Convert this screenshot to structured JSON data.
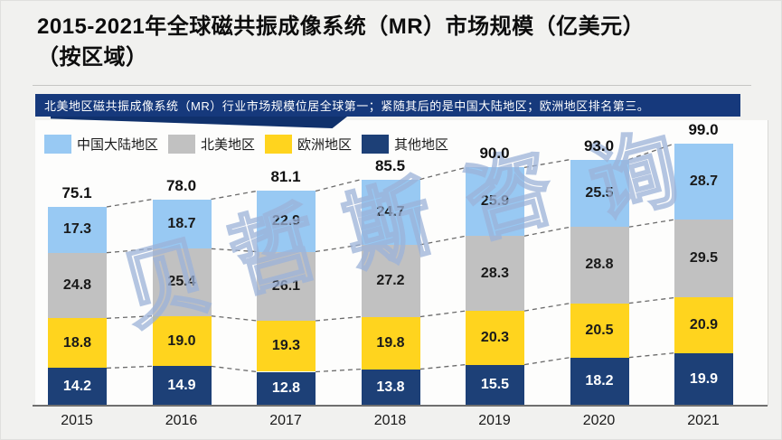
{
  "page": {
    "title_line1": "2015-2021年全球磁共振成像系统（MR）市场规模（亿美元）",
    "title_line2": "（按区域）",
    "banner_text": "北美地区磁共振成像系统（MR）行业市场规模位居全球第一；紧随其后的是中国大陆地区；欧洲地区排名第三。",
    "watermark_text": "贝哲斯咨询"
  },
  "colors": {
    "page_bg": "#f1f1ef",
    "banner_bg": "#16397c",
    "axis_line": "#6f6f6f",
    "dashed_connector": "#6b6b6b",
    "watermark": "#9bb1d8"
  },
  "chart_data": {
    "type": "bar",
    "stacked": true,
    "title": "2015-2021年全球磁共振成像系统（MR）市场规模（亿美元）（按区域）",
    "unit": "亿美元",
    "categories": [
      "2015",
      "2016",
      "2017",
      "2018",
      "2019",
      "2020",
      "2021"
    ],
    "series": [
      {
        "name": "中国大陆地区",
        "color": "#98c9f3",
        "label_color": "#1a1a1a",
        "values": [
          17.3,
          18.7,
          22.9,
          24.7,
          25.9,
          25.5,
          28.7
        ]
      },
      {
        "name": "北美地区",
        "color": "#c1c1c1",
        "label_color": "#1a1a1a",
        "values": [
          24.8,
          25.4,
          26.1,
          27.2,
          28.3,
          28.8,
          29.5
        ]
      },
      {
        "name": "欧洲地区",
        "color": "#ffd41e",
        "label_color": "#1a1a1a",
        "values": [
          18.8,
          19.0,
          19.3,
          19.8,
          20.3,
          20.5,
          20.9
        ]
      },
      {
        "name": "其他地区",
        "color": "#1d4077",
        "label_color": "#ffffff",
        "values": [
          14.2,
          14.9,
          12.8,
          13.8,
          15.5,
          18.2,
          19.9
        ]
      }
    ],
    "totals": [
      75.1,
      78.0,
      81.1,
      85.5,
      90.0,
      93.0,
      99.0
    ],
    "value_labels": "all-segments-and-totals",
    "legend_position": "top-left",
    "y_axis_visible": false,
    "grid": false
  }
}
